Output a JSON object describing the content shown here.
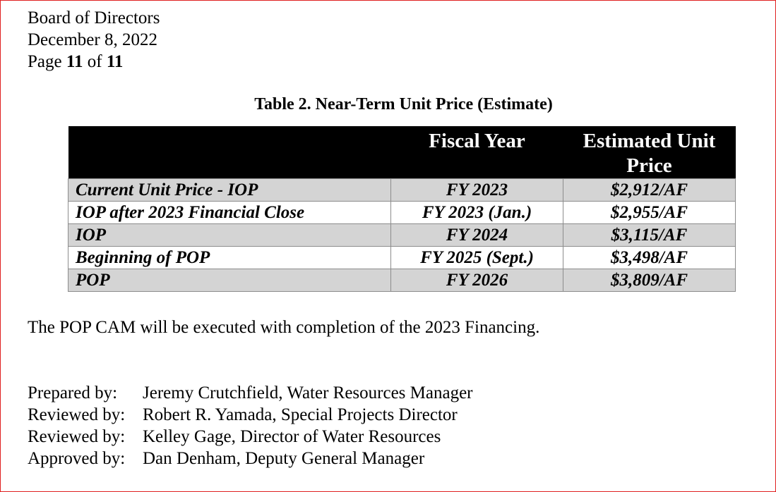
{
  "header": {
    "line1": "Board of Directors",
    "line2": "December 8, 2022",
    "page_prefix": "Page",
    "page_current": "11",
    "page_of": "of",
    "page_total": "11"
  },
  "table": {
    "caption": "Table 2. Near-Term Unit Price (Estimate)",
    "columns": [
      "",
      "Fiscal Year",
      "Estimated Unit Price"
    ],
    "rows": [
      {
        "name": "Current Unit Price - IOP",
        "fiscal_year": "FY 2023",
        "price": "$2,912/AF"
      },
      {
        "name": "IOP after 2023 Financial Close",
        "fiscal_year": "FY 2023 (Jan.)",
        "price": "$2,955/AF"
      },
      {
        "name": "IOP",
        "fiscal_year": "FY 2024",
        "price": "$3,115/AF"
      },
      {
        "name": "Beginning of POP",
        "fiscal_year": "FY 2025 (Sept.)",
        "price": "$3,498/AF"
      },
      {
        "name": "POP",
        "fiscal_year": "FY 2026",
        "price": "$3,809/AF"
      }
    ]
  },
  "statement": "The POP CAM will be executed with completion of the 2023 Financing.",
  "signoffs": [
    {
      "role": "Prepared by:",
      "person": "Jeremy Crutchfield, Water Resources Manager"
    },
    {
      "role": "Reviewed by:",
      "person": "Robert R. Yamada, Special Projects Director"
    },
    {
      "role": "Reviewed by:",
      "person": "Kelley Gage, Director of Water Resources"
    },
    {
      "role": "Approved by:",
      "person": "Dan Denham, Deputy General Manager"
    }
  ],
  "colors": {
    "page_border": "#e02020",
    "header_bg": "#000000",
    "shaded_row": "#d4d4d4"
  }
}
